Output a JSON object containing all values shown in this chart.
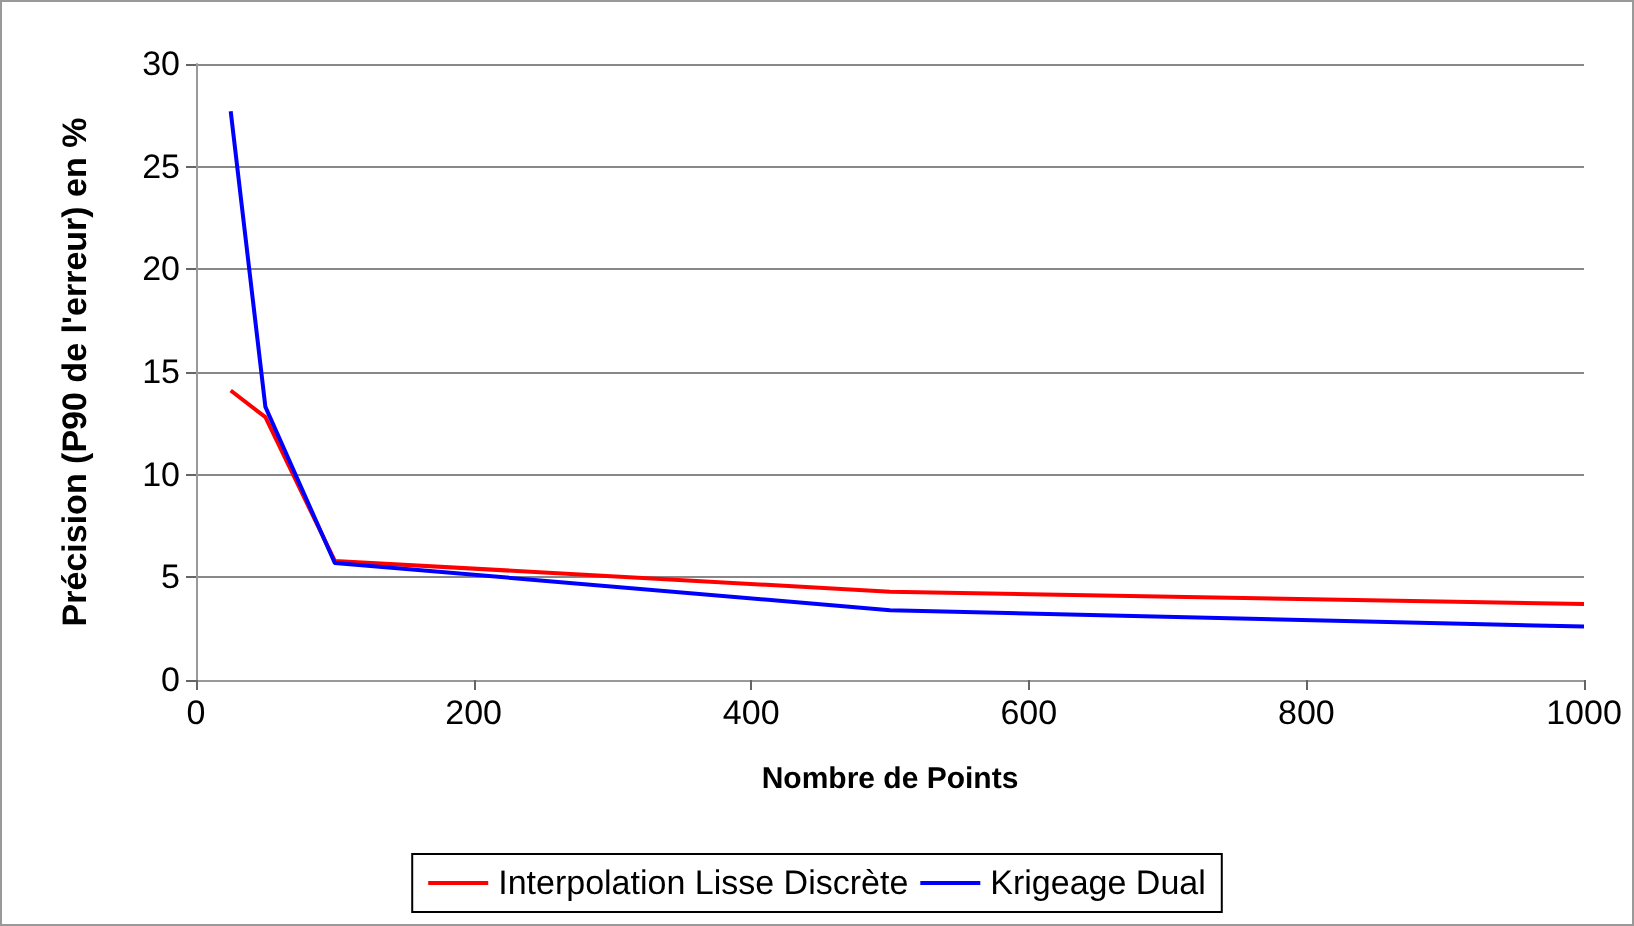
{
  "chart_data": {
    "type": "line",
    "xlabel": "Nombre de Points",
    "ylabel": "Précision (P90 de l'erreur) en %",
    "x": [
      25,
      50,
      100,
      500,
      1000
    ],
    "series": [
      {
        "name": "Interpolation Lisse Discrète",
        "color": "#ff0000",
        "values": [
          14.1,
          12.8,
          5.8,
          4.3,
          3.7
        ]
      },
      {
        "name": "Krigeage Dual",
        "color": "#0000ff",
        "values": [
          27.7,
          13.3,
          5.7,
          3.4,
          2.6
        ]
      }
    ],
    "xlim": [
      0,
      1000
    ],
    "xticks": [
      0,
      200,
      400,
      600,
      800,
      1000
    ],
    "ylim": [
      0,
      30
    ],
    "yticks": [
      0,
      5,
      10,
      15,
      20,
      25,
      30
    ],
    "grid": "y",
    "legend": "bottom",
    "marker": "none",
    "line_style": "solid"
  }
}
